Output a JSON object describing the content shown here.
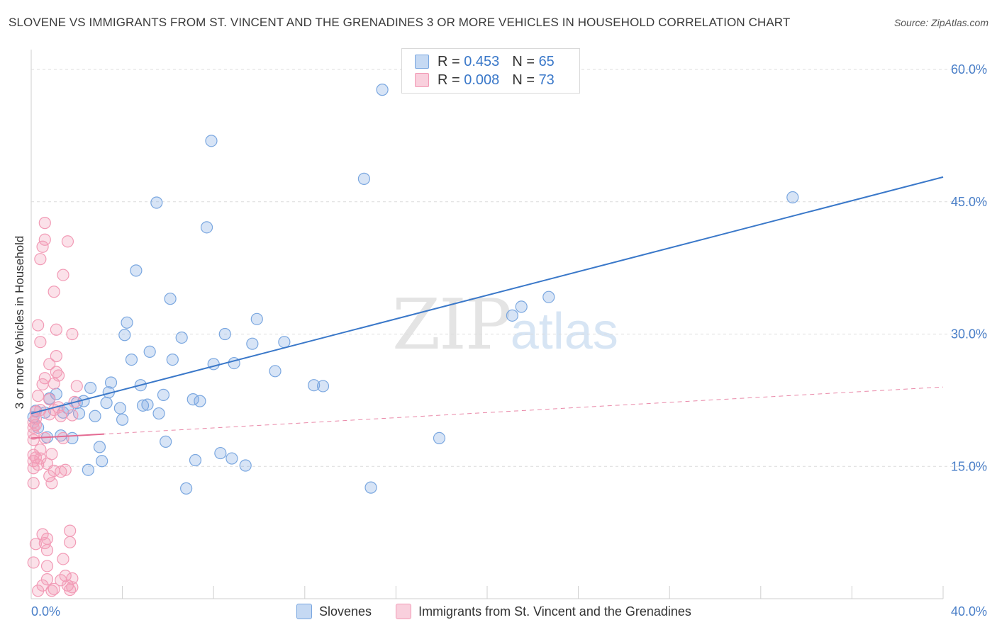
{
  "title": "SLOVENE VS IMMIGRANTS FROM ST. VINCENT AND THE GRENADINES 3 OR MORE VEHICLES IN HOUSEHOLD CORRELATION CHART",
  "source": "Source: ZipAtlas.com",
  "watermark": {
    "zip": "ZIP",
    "atlas": "atlas"
  },
  "legend": {
    "rows": [
      {
        "r_label": "R = ",
        "r_value": "0.453",
        "n_label": "N = ",
        "n_value": "65"
      },
      {
        "r_label": "R = ",
        "r_value": "0.008",
        "n_label": "N = ",
        "n_value": "73"
      }
    ]
  },
  "chart_data": {
    "type": "scatter",
    "ylabel": "3 or more Vehicles in Household",
    "xlim": [
      0,
      40
    ],
    "ylim": [
      0,
      60
    ],
    "x_tick_labels": [
      "0.0%",
      "40.0%"
    ],
    "y_ticks": [
      15,
      30,
      45,
      60
    ],
    "y_tick_labels": [
      "15.0%",
      "30.0%",
      "45.0%",
      "60.0%"
    ],
    "grid": true,
    "legend_position": "top-center",
    "series": [
      {
        "name": "Slovenes",
        "color": "#7aa7e0",
        "trend_color": "#3a78c9",
        "trend": {
          "x": [
            0,
            40
          ],
          "y": [
            21.0,
            47.8
          ],
          "style": "solid"
        },
        "points": [
          [
            0.2,
            21.3
          ],
          [
            0.3,
            19.4
          ],
          [
            0.6,
            21.1
          ],
          [
            0.7,
            18.3
          ],
          [
            0.8,
            22.7
          ],
          [
            1.1,
            23.2
          ],
          [
            1.3,
            18.5
          ],
          [
            1.4,
            21.1
          ],
          [
            1.6,
            21.6
          ],
          [
            1.8,
            18.2
          ],
          [
            2.0,
            22.2
          ],
          [
            2.1,
            21.0
          ],
          [
            2.3,
            22.4
          ],
          [
            2.5,
            14.6
          ],
          [
            2.6,
            23.9
          ],
          [
            2.8,
            20.7
          ],
          [
            3.0,
            17.2
          ],
          [
            3.1,
            15.6
          ],
          [
            3.3,
            22.2
          ],
          [
            3.4,
            23.4
          ],
          [
            3.5,
            24.5
          ],
          [
            3.9,
            21.6
          ],
          [
            4.0,
            20.3
          ],
          [
            4.1,
            29.9
          ],
          [
            4.2,
            31.3
          ],
          [
            4.4,
            27.1
          ],
          [
            4.6,
            37.2
          ],
          [
            4.8,
            24.2
          ],
          [
            4.9,
            21.9
          ],
          [
            5.1,
            22.0
          ],
          [
            5.2,
            28.0
          ],
          [
            5.5,
            44.9
          ],
          [
            5.6,
            21.0
          ],
          [
            5.8,
            23.1
          ],
          [
            5.9,
            17.8
          ],
          [
            6.1,
            34.0
          ],
          [
            6.2,
            27.1
          ],
          [
            6.6,
            29.6
          ],
          [
            6.8,
            12.5
          ],
          [
            7.1,
            22.6
          ],
          [
            7.2,
            15.7
          ],
          [
            7.4,
            22.4
          ],
          [
            7.7,
            42.1
          ],
          [
            7.9,
            51.9
          ],
          [
            8.0,
            26.6
          ],
          [
            8.3,
            16.5
          ],
          [
            8.5,
            30.0
          ],
          [
            8.8,
            15.9
          ],
          [
            8.9,
            26.7
          ],
          [
            9.4,
            15.1
          ],
          [
            9.7,
            28.9
          ],
          [
            9.9,
            31.7
          ],
          [
            10.7,
            25.8
          ],
          [
            11.1,
            29.1
          ],
          [
            12.4,
            24.2
          ],
          [
            12.8,
            24.1
          ],
          [
            14.6,
            47.6
          ],
          [
            14.9,
            12.6
          ],
          [
            15.4,
            57.7
          ],
          [
            17.9,
            18.2
          ],
          [
            21.1,
            32.1
          ],
          [
            21.5,
            33.1
          ],
          [
            22.7,
            34.2
          ],
          [
            33.4,
            45.5
          ],
          [
            0.1,
            20.6
          ]
        ]
      },
      {
        "name": "Immigrants from St. Vincent and the Grenadines",
        "color": "#f29bb6",
        "trend_color": "#e46b93",
        "trend": {
          "x": [
            0,
            40
          ],
          "y": [
            18.2,
            24.0
          ],
          "style": "dashed",
          "solid_until": 3.2
        },
        "points": [
          [
            0.1,
            13.1
          ],
          [
            0.1,
            14.8
          ],
          [
            0.1,
            15.6
          ],
          [
            0.1,
            16.3
          ],
          [
            0.1,
            18.0
          ],
          [
            0.1,
            18.7
          ],
          [
            0.1,
            19.4
          ],
          [
            0.1,
            20.0
          ],
          [
            0.1,
            4.1
          ],
          [
            0.2,
            6.2
          ],
          [
            0.2,
            21.2
          ],
          [
            0.2,
            20.4
          ],
          [
            0.2,
            19.7
          ],
          [
            0.3,
            31.0
          ],
          [
            0.3,
            23.0
          ],
          [
            0.3,
            15.2
          ],
          [
            0.3,
            0.9
          ],
          [
            0.4,
            29.1
          ],
          [
            0.4,
            38.5
          ],
          [
            0.4,
            16.9
          ],
          [
            0.4,
            15.9
          ],
          [
            0.4,
            21.4
          ],
          [
            0.5,
            7.3
          ],
          [
            0.5,
            39.9
          ],
          [
            0.5,
            1.5
          ],
          [
            0.6,
            42.6
          ],
          [
            0.6,
            40.7
          ],
          [
            0.6,
            25.0
          ],
          [
            0.6,
            18.2
          ],
          [
            0.6,
            6.3
          ],
          [
            0.7,
            6.8
          ],
          [
            0.7,
            5.5
          ],
          [
            0.7,
            3.7
          ],
          [
            0.7,
            2.2
          ],
          [
            0.7,
            15.3
          ],
          [
            0.8,
            26.6
          ],
          [
            0.8,
            22.6
          ],
          [
            0.8,
            20.9
          ],
          [
            0.8,
            13.9
          ],
          [
            0.9,
            13.1
          ],
          [
            0.9,
            16.4
          ],
          [
            0.9,
            0.9
          ],
          [
            1.0,
            34.8
          ],
          [
            1.0,
            24.4
          ],
          [
            1.0,
            21.4
          ],
          [
            1.0,
            1.1
          ],
          [
            1.0,
            14.5
          ],
          [
            1.1,
            30.5
          ],
          [
            1.1,
            27.5
          ],
          [
            1.1,
            25.7
          ],
          [
            1.2,
            25.3
          ],
          [
            1.2,
            21.7
          ],
          [
            1.3,
            20.7
          ],
          [
            1.3,
            14.4
          ],
          [
            1.3,
            2.1
          ],
          [
            1.4,
            36.7
          ],
          [
            1.4,
            4.5
          ],
          [
            1.4,
            18.2
          ],
          [
            1.5,
            2.6
          ],
          [
            1.5,
            14.6
          ],
          [
            1.6,
            40.5
          ],
          [
            1.6,
            1.5
          ],
          [
            1.7,
            7.7
          ],
          [
            1.7,
            6.4
          ],
          [
            1.7,
            1.0
          ],
          [
            1.8,
            30.0
          ],
          [
            1.8,
            20.8
          ],
          [
            1.8,
            1.3
          ],
          [
            1.8,
            2.3
          ],
          [
            1.9,
            22.3
          ],
          [
            2.0,
            24.1
          ],
          [
            0.2,
            16.0
          ],
          [
            0.5,
            24.3
          ]
        ]
      }
    ]
  }
}
